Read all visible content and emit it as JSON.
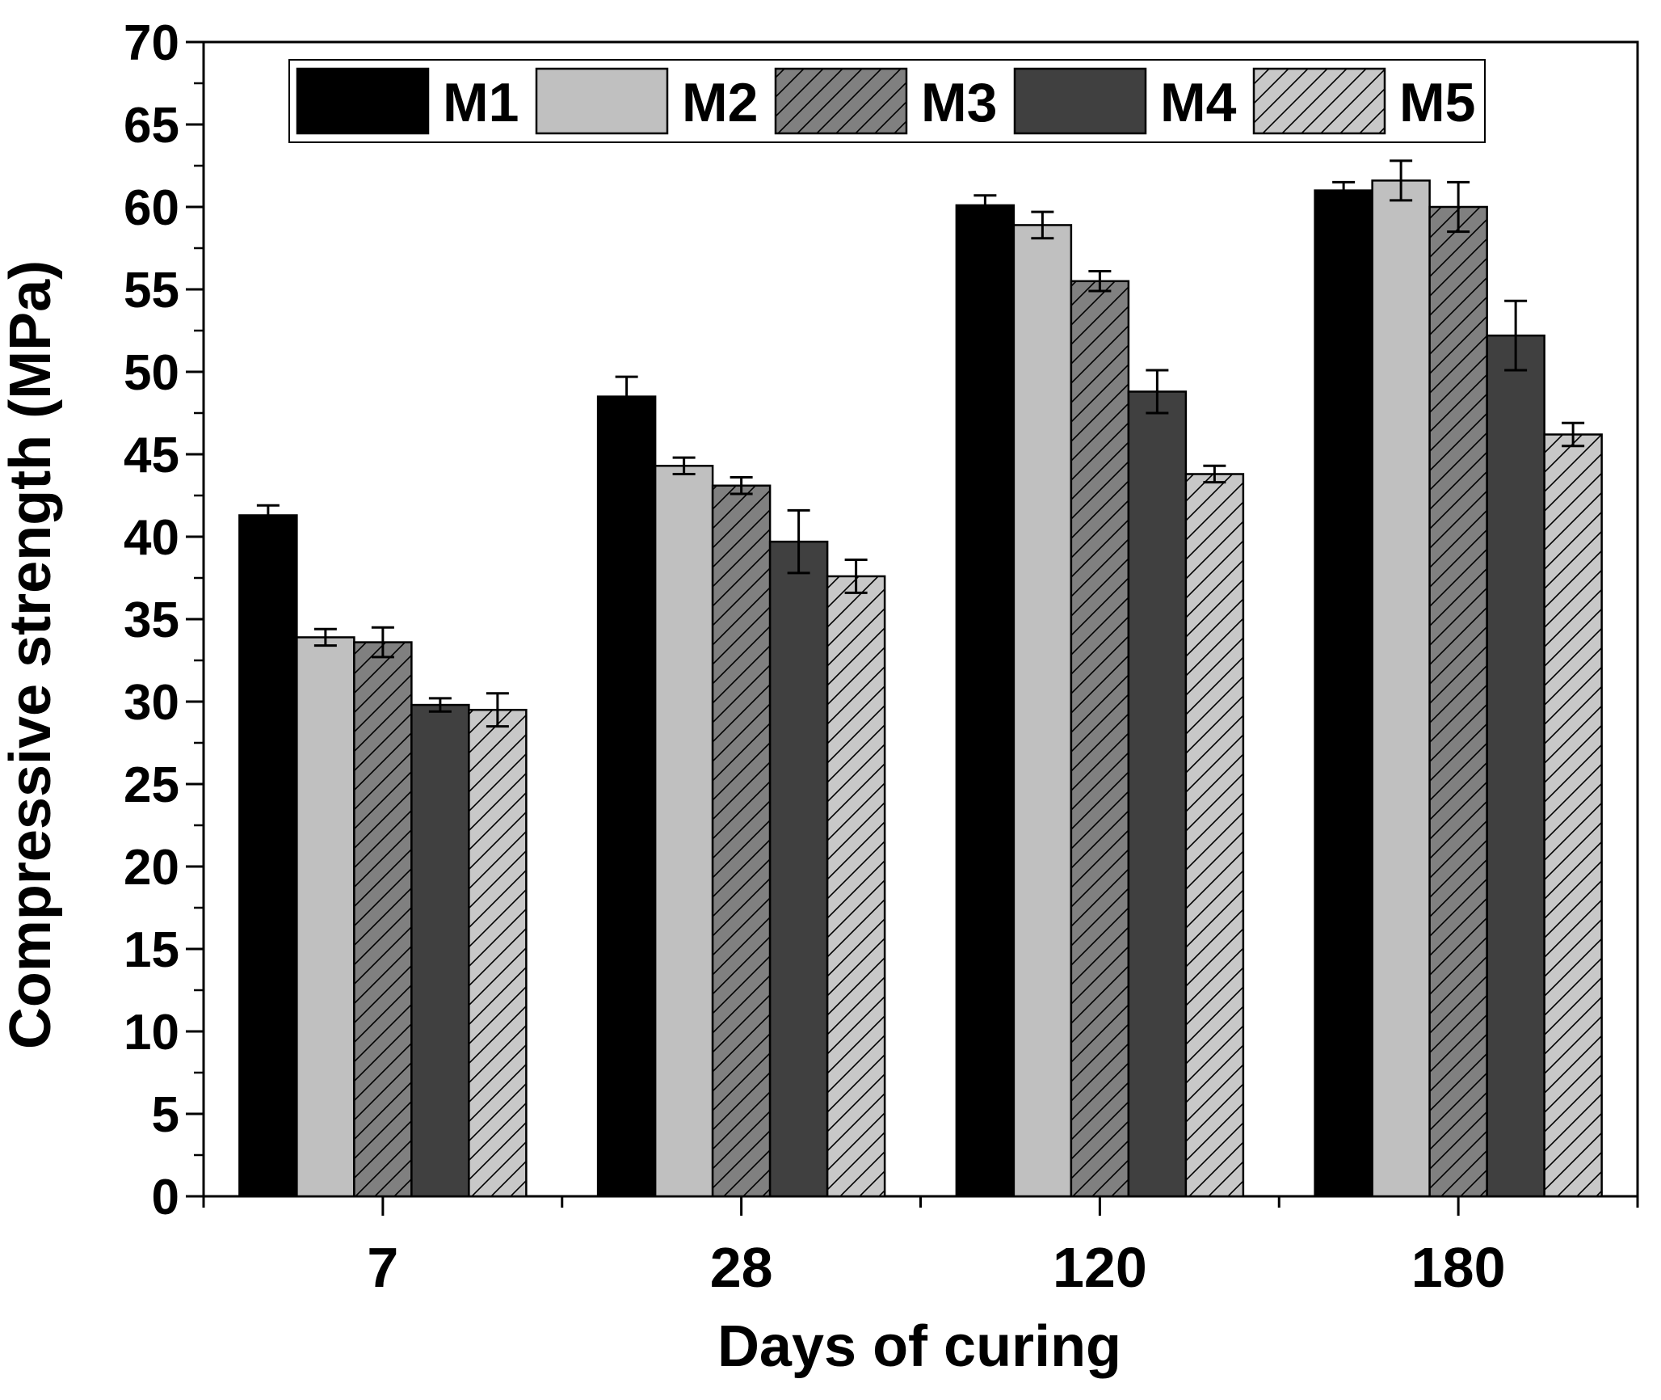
{
  "chart_data": {
    "type": "bar",
    "xlabel": "Days of curing",
    "ylabel": "Compressive strength (MPa)",
    "ylim": [
      0,
      70
    ],
    "y_ticks": [
      0,
      5,
      10,
      15,
      20,
      25,
      30,
      35,
      40,
      45,
      50,
      55,
      60,
      65,
      70
    ],
    "y_tick_labels": [
      "0",
      "5",
      "10",
      "15",
      "20",
      "25",
      "30",
      "35",
      "40",
      "45",
      "50",
      "55",
      "60",
      "65",
      "70"
    ],
    "categories": [
      "7",
      "28",
      "120",
      "180"
    ],
    "legend_position": "top",
    "series": [
      {
        "name": "M1",
        "values": [
          41.3,
          48.5,
          60.1,
          61.0
        ],
        "errors": [
          0.6,
          1.2,
          0.6,
          0.5
        ],
        "fill": "#000000",
        "hatch": false
      },
      {
        "name": "M2",
        "values": [
          33.9,
          44.3,
          58.9,
          61.6
        ],
        "errors": [
          0.5,
          0.5,
          0.8,
          1.2
        ],
        "fill": "#c0c0c0",
        "hatch": false
      },
      {
        "name": "M3",
        "values": [
          33.6,
          43.1,
          55.5,
          60.0
        ],
        "errors": [
          0.9,
          0.5,
          0.6,
          1.5
        ],
        "fill": "#808080",
        "hatch": true
      },
      {
        "name": "M4",
        "values": [
          29.8,
          39.7,
          48.8,
          52.2
        ],
        "errors": [
          0.4,
          1.9,
          1.3,
          2.1
        ],
        "fill": "#404040",
        "hatch": false
      },
      {
        "name": "M5",
        "values": [
          29.5,
          37.6,
          43.8,
          46.2
        ],
        "errors": [
          1.0,
          1.0,
          0.5,
          0.7
        ],
        "fill": "#c8c8c8",
        "hatch": true
      }
    ]
  }
}
